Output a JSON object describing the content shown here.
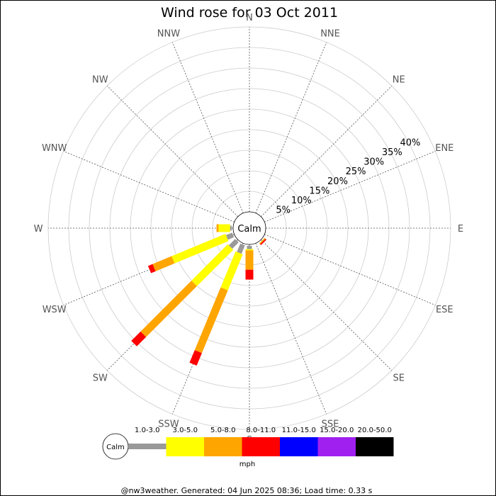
{
  "chart_data": {
    "type": "wind-rose",
    "title": "Wind rose for 03 Oct 2011",
    "directions": [
      "N",
      "NNE",
      "NE",
      "ENE",
      "E",
      "ESE",
      "SE",
      "SSE",
      "S",
      "SSW",
      "SW",
      "WSW",
      "W",
      "WNW",
      "NW",
      "NNW"
    ],
    "rings_percent": [
      5,
      10,
      15,
      20,
      25,
      30,
      35,
      40
    ],
    "ring_labels": [
      "5%",
      "10%",
      "15%",
      "20%",
      "25%",
      "30%",
      "35%",
      "40%"
    ],
    "calm_label": "Calm",
    "speed_bins": [
      {
        "label": "1.0-3.0",
        "color": "#999999"
      },
      {
        "label": "3.0-5.0",
        "color": "#ffff00"
      },
      {
        "label": "5.0-8.0",
        "color": "#ffa500"
      },
      {
        "label": "8.0-11.0",
        "color": "#ff0000"
      },
      {
        "label": "11.0-15.0",
        "color": "#0000ff"
      },
      {
        "label": "15.0-20.0",
        "color": "#a020f0"
      },
      {
        "label": "20.0-50.0",
        "color": "#000000"
      }
    ],
    "unit": "mph",
    "series": [
      {
        "direction": "SE",
        "values": [
          0,
          0,
          0.3,
          0.3,
          0,
          0,
          0
        ]
      },
      {
        "direction": "S",
        "values": [
          0.8,
          0.3,
          4.7,
          2.4,
          0,
          0,
          0
        ]
      },
      {
        "direction": "SSW",
        "values": [
          2.2,
          9.5,
          16.5,
          3.3,
          0,
          0,
          0
        ]
      },
      {
        "direction": "SW",
        "values": [
          2.2,
          12.5,
          17.5,
          3.2,
          0,
          0,
          0
        ]
      },
      {
        "direction": "WSW",
        "values": [
          1.6,
          14.2,
          5.0,
          1.2,
          0,
          0,
          0
        ]
      },
      {
        "direction": "W",
        "values": [
          0.4,
          2.8,
          0.5,
          0,
          0,
          0,
          0
        ]
      }
    ]
  },
  "footer": "@nw3weather. Generated: 04 Jun 2025 08:36; Load time: 0.33 s"
}
